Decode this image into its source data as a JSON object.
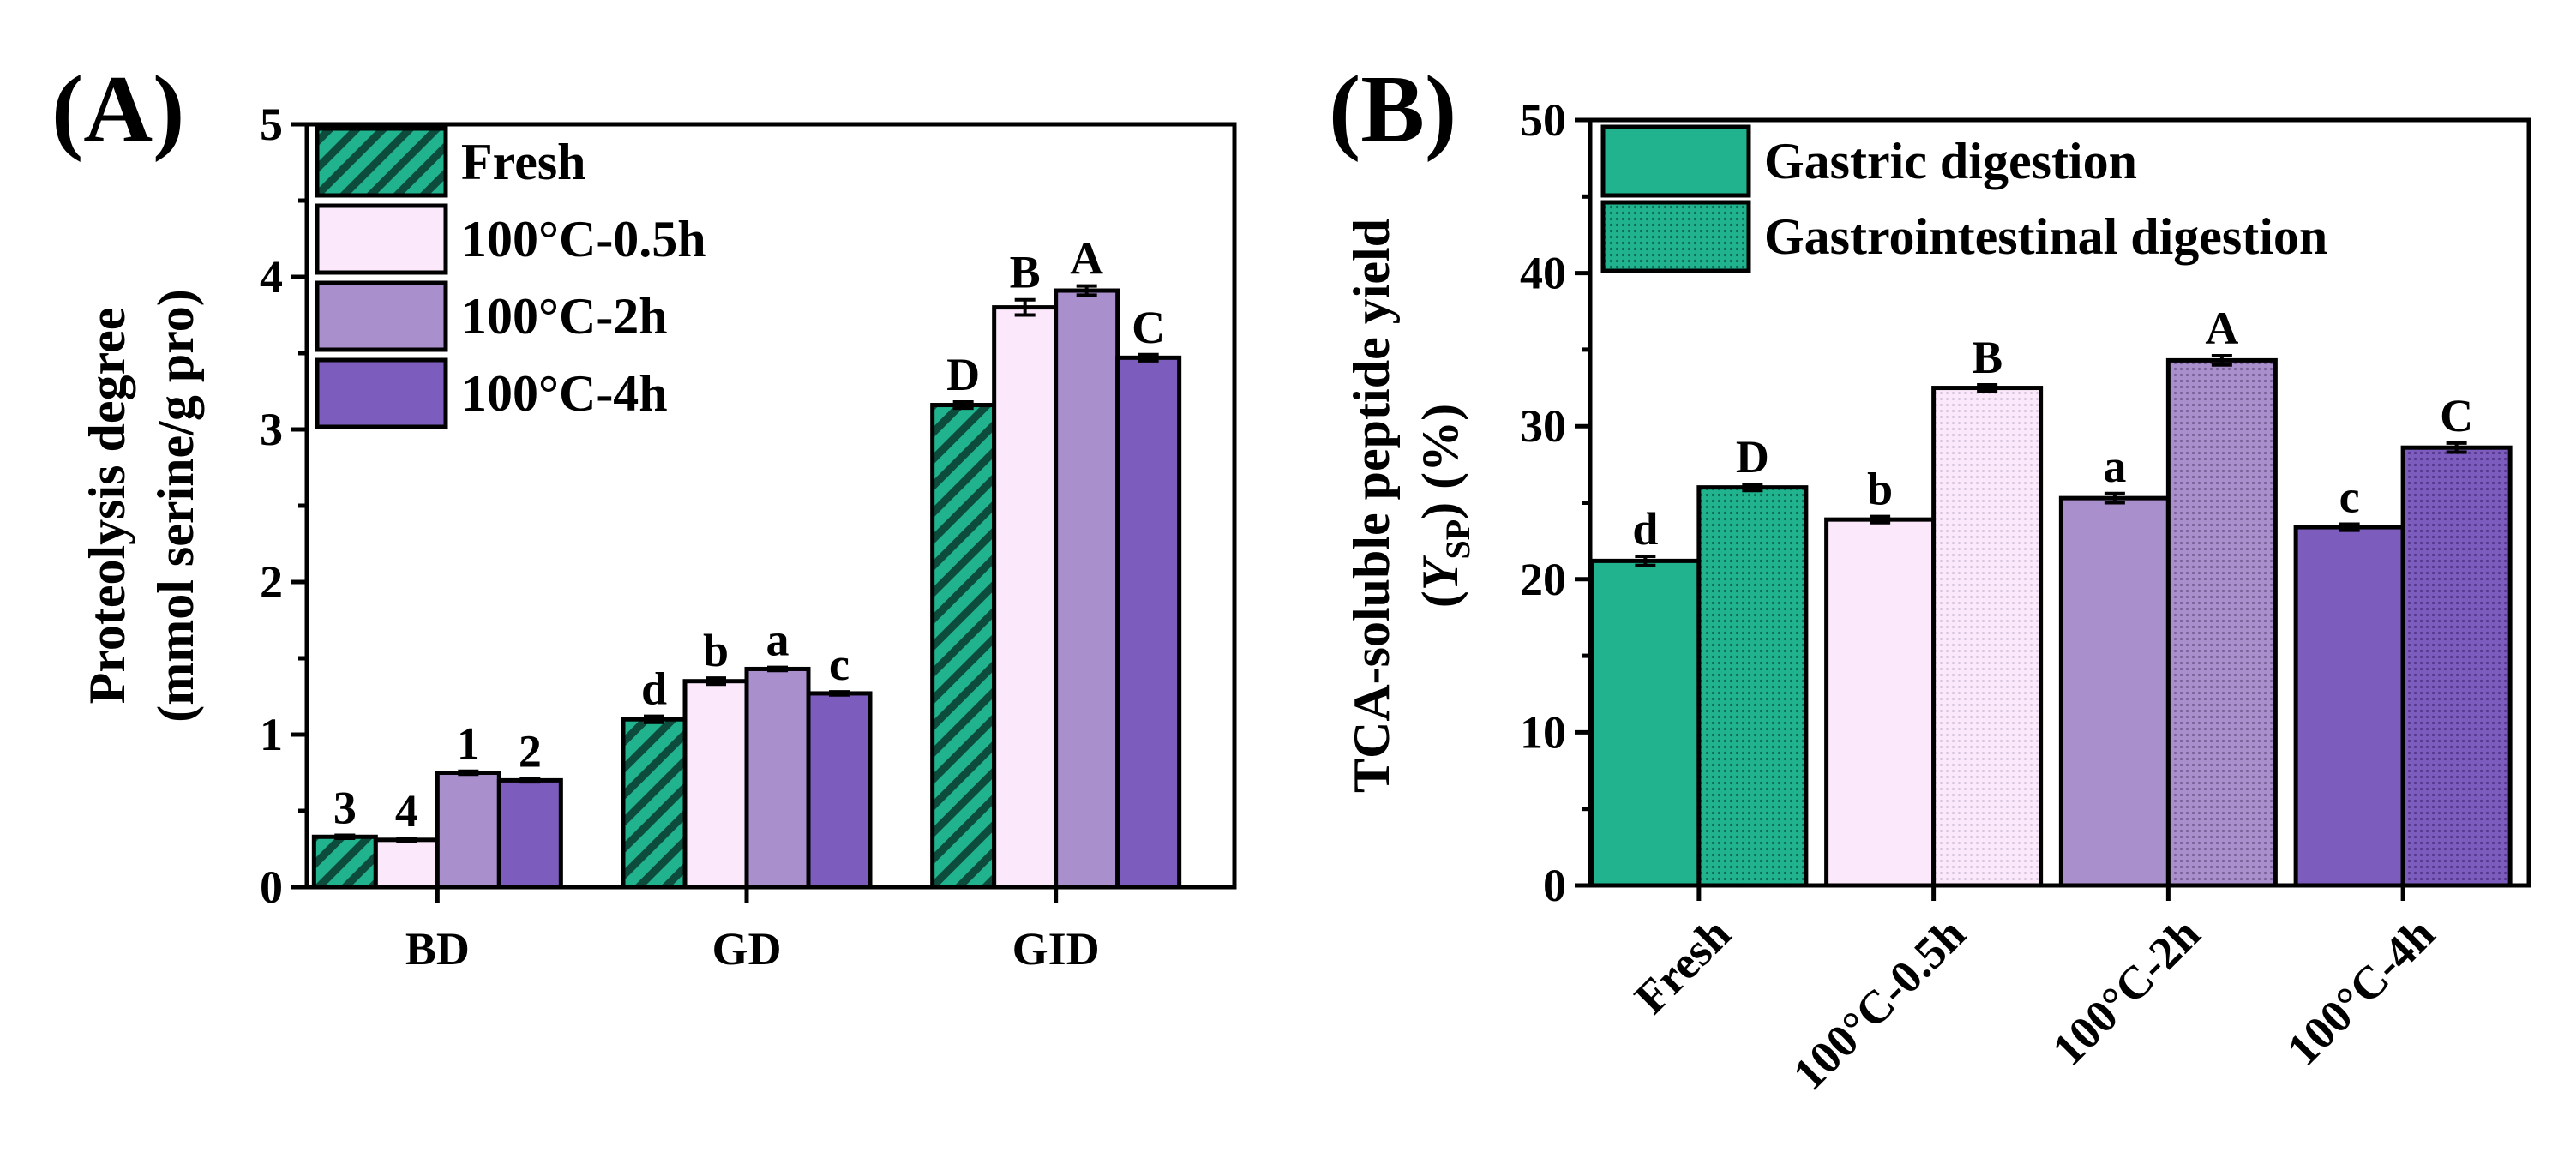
{
  "chart_data": [
    {
      "panel_label": "(A)",
      "type": "bar",
      "ylabel_line1": "Proteolysis degree",
      "ylabel_line2": "(mmol serine/g pro)",
      "ylim": [
        0,
        5
      ],
      "yticks": [
        0,
        1,
        2,
        3,
        4,
        5
      ],
      "categories": [
        "BD",
        "GD",
        "GID"
      ],
      "legend_position": "top-left",
      "series": [
        {
          "name": "Fresh",
          "color": "#20b38e",
          "pattern": "hatch",
          "values": [
            0.33,
            1.1,
            3.16
          ],
          "errors": [
            0.01,
            0.02,
            0.02
          ],
          "sig": [
            "3",
            "d",
            "D"
          ]
        },
        {
          "name": "100°C-0.5h",
          "color": "#fbe9fb",
          "pattern": "solid",
          "values": [
            0.31,
            1.35,
            3.8
          ],
          "errors": [
            0.01,
            0.02,
            0.05
          ],
          "sig": [
            "4",
            "b",
            "B"
          ]
        },
        {
          "name": "100°C-2h",
          "color": "#a98fcc",
          "pattern": "solid",
          "values": [
            0.75,
            1.43,
            3.91
          ],
          "errors": [
            0.01,
            0.01,
            0.03
          ],
          "sig": [
            "1",
            "a",
            "A"
          ]
        },
        {
          "name": "100°C-4h",
          "color": "#7c5cbc",
          "pattern": "solid",
          "values": [
            0.7,
            1.27,
            3.47
          ],
          "errors": [
            0.01,
            0.01,
            0.02
          ],
          "sig": [
            "2",
            "c",
            "C"
          ]
        }
      ]
    },
    {
      "panel_label": "(B)",
      "type": "bar",
      "ylabel_line1": "TCA-soluble peptide yield",
      "ylabel_prefix": "(",
      "ylabel_symbol": "Y",
      "ylabel_subscript": "SP",
      "ylabel_suffix": ") (%)",
      "ylim": [
        0,
        50
      ],
      "yticks": [
        0,
        10,
        20,
        30,
        40,
        50
      ],
      "categories": [
        "Fresh",
        "100°C-0.5h",
        "100°C-2h",
        "100°C-4h"
      ],
      "legend_position": "top-left",
      "series": [
        {
          "name": "Gastric digestion",
          "values": [
            21.2,
            23.9,
            25.3,
            23.4
          ],
          "errors": [
            0.3,
            0.2,
            0.3,
            0.2
          ],
          "sig": [
            "d",
            "b",
            "a",
            "c"
          ]
        },
        {
          "name": "Gastrointestinal digestion",
          "values": [
            26.0,
            32.5,
            34.3,
            28.6
          ],
          "errors": [
            0.2,
            0.2,
            0.3,
            0.3
          ],
          "sig": [
            "D",
            "B",
            "A",
            "C"
          ]
        }
      ],
      "bar_colors": [
        "#20b38e",
        "#fbe9fb",
        "#a98fcc",
        "#7c5cbc"
      ],
      "legend_colors": [
        "#20b38e",
        "#20b38e"
      ],
      "legend_patterns": [
        "solid",
        "dots"
      ]
    }
  ]
}
